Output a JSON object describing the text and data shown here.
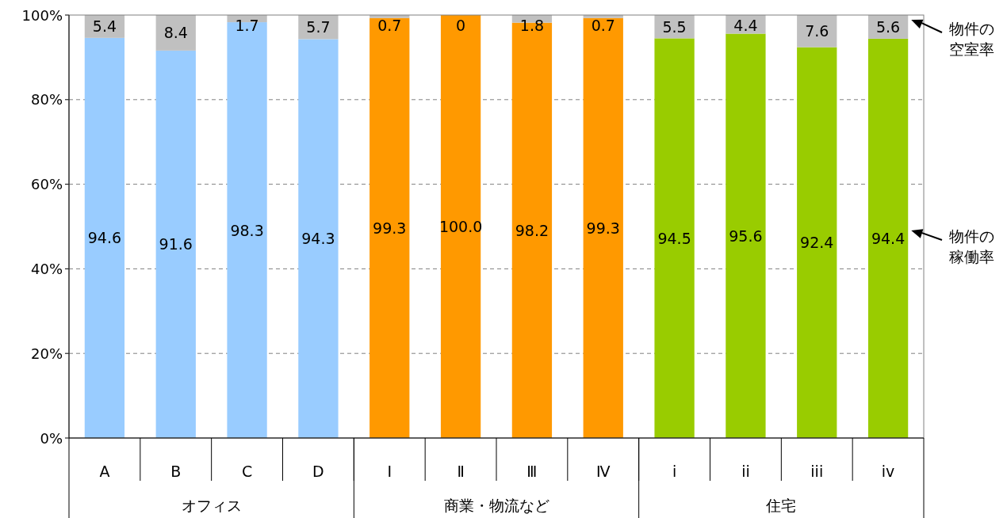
{
  "chart_data": {
    "type": "bar",
    "stacked": true,
    "categories": [
      "A",
      "B",
      "C",
      "D",
      "Ⅰ",
      "Ⅱ",
      "Ⅲ",
      "Ⅳ",
      "i",
      "ii",
      "iii",
      "iv"
    ],
    "series": [
      {
        "name": "物件の稼働率",
        "colors": [
          "#99ccff",
          "#99ccff",
          "#99ccff",
          "#99ccff",
          "#ff9900",
          "#ff9900",
          "#ff9900",
          "#ff9900",
          "#99cc00",
          "#99cc00",
          "#99cc00",
          "#99cc00"
        ],
        "values": [
          94.6,
          91.6,
          98.3,
          94.3,
          99.3,
          100,
          98.2,
          99.3,
          94.5,
          95.6,
          92.4,
          94.4
        ],
        "value_labels": [
          "94.6",
          "91.6",
          "98.3",
          "94.3",
          "99.3",
          "100.0",
          "98.2",
          "99.3",
          "94.5",
          "95.6",
          "92.4",
          "94.4"
        ]
      },
      {
        "name": "物件の空室率",
        "color": "#c0c0c0",
        "values": [
          5.4,
          8.4,
          1.7,
          5.7,
          0.7,
          0,
          1.8,
          0.7,
          5.5,
          4.4,
          7.6,
          5.6
        ],
        "value_labels": [
          "5.4",
          "8.4",
          "1.7",
          "5.7",
          "0.7",
          "0",
          "1.8",
          "0.7",
          "5.5",
          "4.4",
          "7.6",
          "5.6"
        ]
      }
    ],
    "ylim": [
      0,
      100
    ],
    "yticks": [
      {
        "value": 0,
        "label": "0%"
      },
      {
        "value": 20,
        "label": "20%"
      },
      {
        "value": 40,
        "label": "40%"
      },
      {
        "value": 60,
        "label": "60%"
      },
      {
        "value": 80,
        "label": "80%"
      },
      {
        "value": 100,
        "label": "100%"
      }
    ],
    "grid": "y",
    "legend": false,
    "annotations": [
      "オフィス",
      "商業・物流など",
      "住宅"
    ]
  }
}
